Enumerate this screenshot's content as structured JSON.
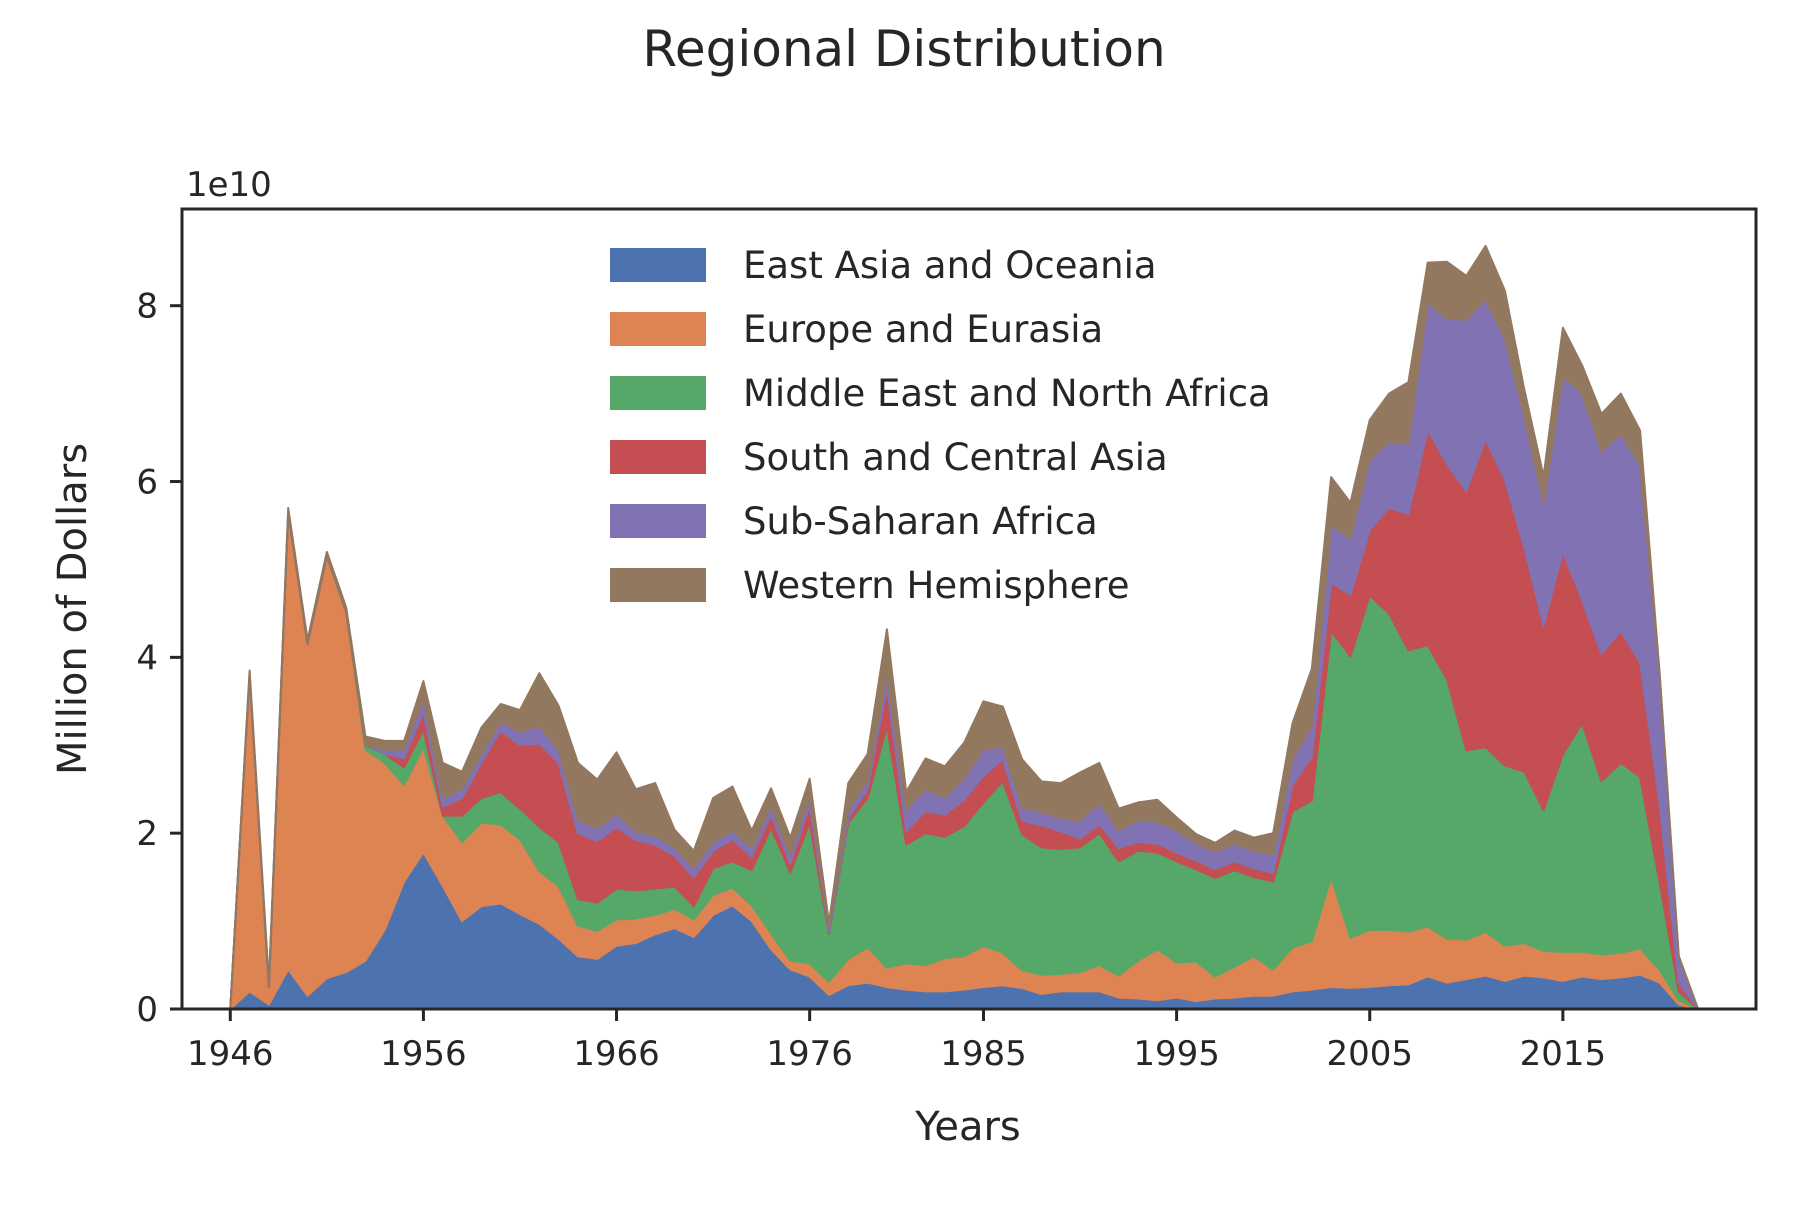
{
  "chart_data": {
    "type": "area",
    "stacked": true,
    "title": "Regional Distribution",
    "xlabel": "Years",
    "ylabel": "Million of Dollars",
    "y_offset_label": "1e10",
    "y_scale_multiplier": 10000000000.0,
    "xlim": [
      1943.5,
      2025.0
    ],
    "ylim": [
      0,
      9.1
    ],
    "x_ticks": [
      1946,
      1956,
      1966,
      1976,
      1985,
      1995,
      2005,
      2015
    ],
    "y_ticks": [
      0,
      2,
      4,
      6,
      8
    ],
    "legend_position": "upper-center",
    "grid": false,
    "x": [
      1946,
      1947,
      1948,
      1949,
      1950,
      1951,
      1952,
      1953,
      1954,
      1955,
      1956,
      1957,
      1958,
      1959,
      1960,
      1961,
      1962,
      1963,
      1964,
      1965,
      1966,
      1967,
      1968,
      1969,
      1970,
      1971,
      1972,
      1973,
      1974,
      1975,
      1976,
      1977,
      1978,
      1979,
      1980,
      1981,
      1982,
      1983,
      1984,
      1985,
      1986,
      1987,
      1988,
      1989,
      1990,
      1991,
      1992,
      1993,
      1994,
      1995,
      1996,
      1997,
      1998,
      1999,
      2000,
      2001,
      2002,
      2003,
      2004,
      2005,
      2006,
      2007,
      2008,
      2009,
      2010,
      2011,
      2012,
      2013,
      2014,
      2015,
      2016,
      2017,
      2018,
      2019,
      2020,
      2021,
      2022
    ],
    "series": [
      {
        "name": "East Asia and Oceania",
        "color": "#4c72b0",
        "values": [
          0,
          0.2,
          0.05,
          0.45,
          0.15,
          0.35,
          0.42,
          0.55,
          0.9,
          1.45,
          1.78,
          1.4,
          1.0,
          1.17,
          1.2,
          1.08,
          0.97,
          0.8,
          0.6,
          0.57,
          0.72,
          0.75,
          0.85,
          0.92,
          0.82,
          1.07,
          1.18,
          1.0,
          0.68,
          0.45,
          0.37,
          0.16,
          0.27,
          0.3,
          0.25,
          0.22,
          0.2,
          0.2,
          0.22,
          0.25,
          0.27,
          0.24,
          0.17,
          0.2,
          0.2,
          0.2,
          0.13,
          0.12,
          0.1,
          0.13,
          0.09,
          0.12,
          0.13,
          0.15,
          0.15,
          0.2,
          0.22,
          0.25,
          0.24,
          0.25,
          0.27,
          0.28,
          0.37,
          0.3,
          0.34,
          0.38,
          0.32,
          0.38,
          0.36,
          0.32,
          0.37,
          0.34,
          0.36,
          0.39,
          0.3,
          0.05,
          0.0
        ]
      },
      {
        "name": "Europe and Eurasia",
        "color": "#dd8452",
        "values": [
          0,
          3.6,
          0.2,
          5.2,
          4.0,
          4.8,
          4.1,
          2.4,
          1.9,
          1.1,
          1.2,
          0.8,
          0.9,
          0.95,
          0.9,
          0.85,
          0.6,
          0.6,
          0.35,
          0.32,
          0.3,
          0.28,
          0.22,
          0.22,
          0.2,
          0.23,
          0.2,
          0.18,
          0.18,
          0.1,
          0.15,
          0.15,
          0.3,
          0.4,
          0.22,
          0.3,
          0.3,
          0.38,
          0.38,
          0.47,
          0.37,
          0.2,
          0.22,
          0.2,
          0.22,
          0.3,
          0.25,
          0.43,
          0.58,
          0.4,
          0.45,
          0.25,
          0.35,
          0.45,
          0.3,
          0.5,
          0.55,
          1.25,
          0.57,
          0.65,
          0.63,
          0.6,
          0.57,
          0.5,
          0.45,
          0.5,
          0.4,
          0.37,
          0.3,
          0.33,
          0.28,
          0.28,
          0.28,
          0.3,
          0.15,
          0.05,
          0.0
        ]
      },
      {
        "name": "Middle East and North Africa",
        "color": "#55a868",
        "values": [
          0,
          0.0,
          0.0,
          0.0,
          0.0,
          0.0,
          0.0,
          0.05,
          0.1,
          0.2,
          0.2,
          0.0,
          0.3,
          0.28,
          0.37,
          0.35,
          0.5,
          0.5,
          0.3,
          0.32,
          0.35,
          0.32,
          0.3,
          0.25,
          0.15,
          0.3,
          0.3,
          0.4,
          1.2,
          1.0,
          1.6,
          0.55,
          1.55,
          1.7,
          2.75,
          1.35,
          1.5,
          1.38,
          1.48,
          1.63,
          1.95,
          1.55,
          1.45,
          1.42,
          1.42,
          1.5,
          1.3,
          1.25,
          1.1,
          1.15,
          1.05,
          1.12,
          1.1,
          0.9,
          1.0,
          1.55,
          1.6,
          2.8,
          3.2,
          3.8,
          3.6,
          3.2,
          3.2,
          2.95,
          2.15,
          2.1,
          2.05,
          1.95,
          1.6,
          2.25,
          2.6,
          1.97,
          2.16,
          1.95,
          1.0,
          0.1,
          0.0
        ]
      },
      {
        "name": "South and Central Asia",
        "color": "#c44e52",
        "values": [
          0,
          0.0,
          0.0,
          0.0,
          0.0,
          0.0,
          0.0,
          0.0,
          0.0,
          0.1,
          0.2,
          0.1,
          0.2,
          0.4,
          0.7,
          0.72,
          0.95,
          0.9,
          0.75,
          0.7,
          0.7,
          0.57,
          0.5,
          0.35,
          0.33,
          0.2,
          0.25,
          0.15,
          0.15,
          0.1,
          0.2,
          0.02,
          0.05,
          0.1,
          0.45,
          0.15,
          0.25,
          0.25,
          0.3,
          0.3,
          0.25,
          0.15,
          0.25,
          0.2,
          0.1,
          0.1,
          0.15,
          0.1,
          0.1,
          0.1,
          0.1,
          0.1,
          0.1,
          0.1,
          0.1,
          0.3,
          0.5,
          0.55,
          0.7,
          0.75,
          1.2,
          1.55,
          2.45,
          2.45,
          2.95,
          3.5,
          3.25,
          2.55,
          2.1,
          2.3,
          1.4,
          1.45,
          1.5,
          1.3,
          0.9,
          0.1,
          0.0
        ]
      },
      {
        "name": "Sub-Saharan Africa",
        "color": "#8172b3",
        "values": [
          0,
          0.0,
          0.0,
          0.0,
          0.0,
          0.0,
          0.0,
          0.0,
          0.05,
          0.1,
          0.15,
          0.1,
          0.1,
          0.1,
          0.1,
          0.15,
          0.2,
          0.15,
          0.15,
          0.15,
          0.15,
          0.1,
          0.1,
          0.1,
          0.1,
          0.1,
          0.1,
          0.1,
          0.1,
          0.1,
          0.1,
          0.05,
          0.1,
          0.1,
          0.15,
          0.25,
          0.25,
          0.2,
          0.25,
          0.3,
          0.15,
          0.15,
          0.15,
          0.15,
          0.2,
          0.25,
          0.2,
          0.25,
          0.25,
          0.25,
          0.2,
          0.2,
          0.2,
          0.2,
          0.2,
          0.3,
          0.35,
          0.65,
          0.65,
          0.8,
          0.75,
          0.8,
          1.45,
          1.65,
          1.95,
          1.6,
          1.6,
          1.5,
          1.4,
          2.0,
          2.35,
          2.3,
          2.25,
          2.24,
          1.5,
          0.3,
          0.0
        ]
      },
      {
        "name": "Western Hemisphere",
        "color": "#937860",
        "values": [
          0,
          0.05,
          0.05,
          0.05,
          0.05,
          0.05,
          0.05,
          0.1,
          0.1,
          0.1,
          0.2,
          0.4,
          0.2,
          0.3,
          0.2,
          0.25,
          0.6,
          0.5,
          0.65,
          0.55,
          0.7,
          0.48,
          0.6,
          0.2,
          0.2,
          0.5,
          0.5,
          0.2,
          0.2,
          0.2,
          0.2,
          0.05,
          0.3,
          0.3,
          0.5,
          0.2,
          0.35,
          0.35,
          0.4,
          0.55,
          0.45,
          0.55,
          0.35,
          0.4,
          0.55,
          0.45,
          0.25,
          0.2,
          0.25,
          0.15,
          0.1,
          0.1,
          0.15,
          0.15,
          0.25,
          0.4,
          0.65,
          0.55,
          0.4,
          0.45,
          0.55,
          0.7,
          0.45,
          0.65,
          0.5,
          0.6,
          0.55,
          0.3,
          0.3,
          0.55,
          0.32,
          0.43,
          0.45,
          0.4,
          0.0,
          0.0,
          0.0
        ]
      }
    ]
  }
}
